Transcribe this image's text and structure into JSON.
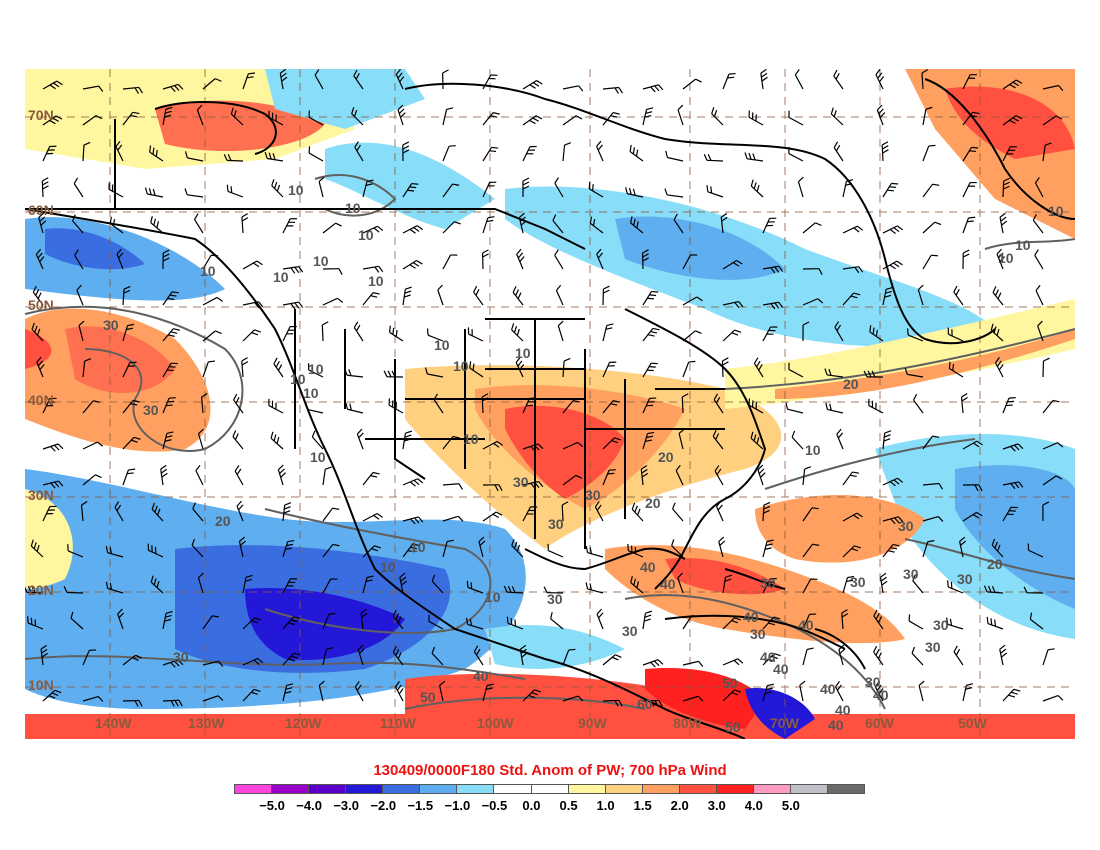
{
  "title": "130409/0000F180 Std. Anom of PW; 700 hPa Wind",
  "latitude_labels": [
    "70N",
    "60N",
    "50N",
    "40N",
    "30N",
    "20N",
    "10N"
  ],
  "longitude_labels": [
    "140W",
    "130W",
    "120W",
    "110W",
    "100W",
    "90W",
    "80W",
    "70W",
    "60W",
    "50W"
  ],
  "contour_labels": [
    "10",
    "10",
    "10",
    "10",
    "10",
    "10",
    "10",
    "10",
    "10",
    "10",
    "10",
    "30",
    "30",
    "10",
    "10",
    "10",
    "10",
    "10",
    "20",
    "10",
    "30",
    "30",
    "20",
    "30",
    "20",
    "10",
    "10",
    "10",
    "10",
    "20",
    "30",
    "30",
    "30",
    "30",
    "30",
    "20",
    "40",
    "40",
    "30",
    "40",
    "40",
    "30",
    "30",
    "40",
    "50",
    "40",
    "40",
    "30",
    "40",
    "30",
    "40",
    "10",
    "30",
    "30",
    "60",
    "50",
    "50",
    "40",
    "40"
  ],
  "colorbar": {
    "labels": [
      "−5.0",
      "−4.0",
      "−3.0",
      "−2.0",
      "−1.5",
      "−1.0",
      "−0.5",
      "0.0",
      "0.5",
      "1.0",
      "1.5",
      "2.0",
      "3.0",
      "4.0",
      "5.0"
    ],
    "colors": [
      "#ff44dd",
      "#9900cc",
      "#5a00c8",
      "#2418d8",
      "#3a6ee0",
      "#5eaef0",
      "#88ddf8",
      "#ffffff",
      "#ffffff",
      "#fff6a0",
      "#ffd080",
      "#ffa060",
      "#ff5040",
      "#ff2020",
      "#ff9ac0",
      "#c0c0c8",
      "#6a6a6a"
    ]
  },
  "map_colors": {
    "land_outline": "#000000",
    "grid": "#8a5a3c",
    "contour": "#606060"
  }
}
